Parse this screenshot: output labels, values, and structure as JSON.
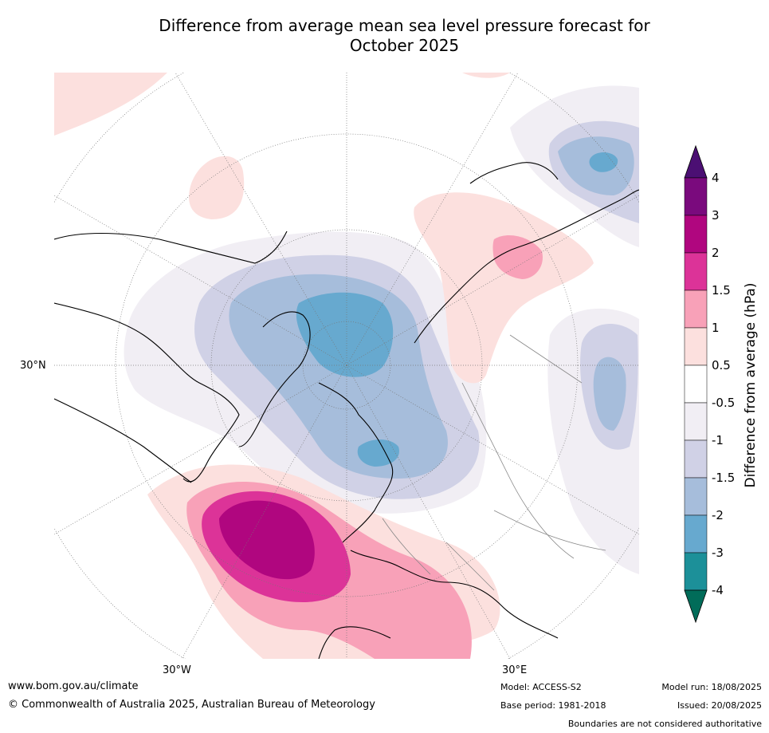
{
  "title_line1": "Difference from average mean sea level pressure forecast for",
  "title_line2": "October 2025",
  "map": {
    "lat_label": "30°N",
    "lon_label_left": "30°W",
    "lon_label_right": "30°E",
    "icons": [
      "polar-map",
      "coastlines",
      "graticule"
    ]
  },
  "colorbar": {
    "label": "Difference from average (hPa)",
    "ticks": [
      "4",
      "3",
      "2",
      "1.5",
      "1",
      "0.5",
      "-0.5",
      "-1",
      "-1.5",
      "-2",
      "-3",
      "-4"
    ],
    "colors": [
      "#4b0f73",
      "#7a0a7d",
      "#b0067f",
      "#dc3398",
      "#f8a1b8",
      "#fce0de",
      "#ffffff",
      "#f1eef4",
      "#d0d1e6",
      "#a6bddb",
      "#67a9cf",
      "#1c9099",
      "#016c59"
    ]
  },
  "footer": {
    "website": "www.bom.gov.au/climate",
    "copyright": "© Commonwealth of Australia 2025, Australian Bureau of Meteorology",
    "model": "Model: ACCESS-S2",
    "base_period": "Base period: 1981-2018",
    "model_run": "Model run: 18/08/2025",
    "issued": "Issued: 20/08/2025",
    "disclaimer": "Boundaries are not considered authoritative"
  }
}
